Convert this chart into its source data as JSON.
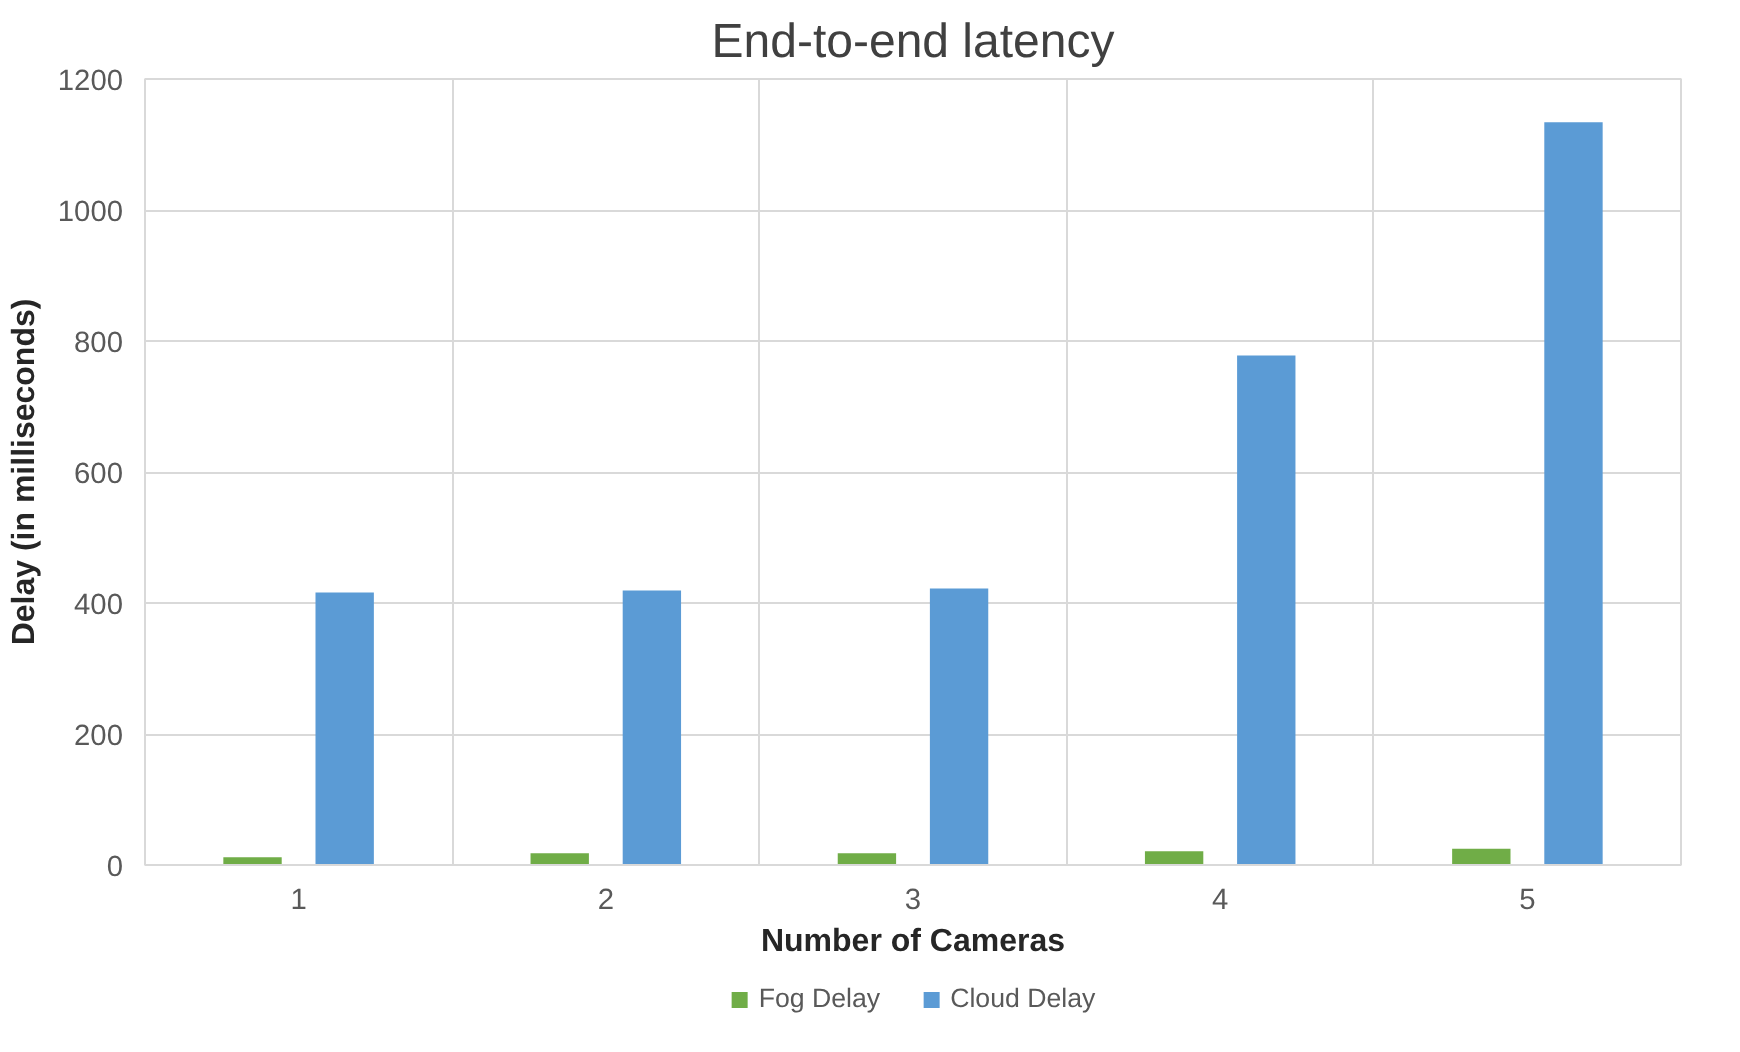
{
  "chart_data": {
    "type": "bar",
    "title": "End-to-end latency",
    "xlabel": "Number of Cameras",
    "ylabel": "Delay (in milliseconds)",
    "categories": [
      "1",
      "2",
      "3",
      "4",
      "5"
    ],
    "series": [
      {
        "name": "Fog Delay",
        "color": "#70ad47",
        "values": [
          12,
          18,
          18,
          21,
          25
        ]
      },
      {
        "name": "Cloud Delay",
        "color": "#5b9bd5",
        "values": [
          416,
          419,
          422,
          778,
          1134
        ]
      }
    ],
    "ylim": [
      0,
      1200
    ],
    "yticks": [
      0,
      200,
      400,
      600,
      800,
      1000,
      1200
    ],
    "grid": true,
    "legend": "bottom"
  }
}
